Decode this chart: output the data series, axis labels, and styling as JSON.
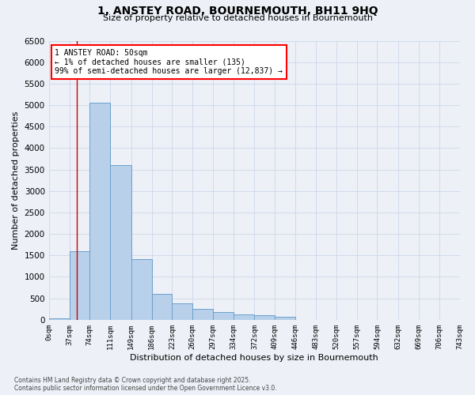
{
  "title": "1, ANSTEY ROAD, BOURNEMOUTH, BH11 9HQ",
  "subtitle": "Size of property relative to detached houses in Bournemouth",
  "xlabel": "Distribution of detached houses by size in Bournemouth",
  "ylabel": "Number of detached properties",
  "bar_color": "#b8d0ea",
  "bar_edge_color": "#6aa0cc",
  "background_color": "#edf1f7",
  "annotation_line1": "1 ANSTEY ROAD: 50sqm",
  "annotation_line2": "← 1% of detached houses are smaller (135)",
  "annotation_line3": "99% of semi-detached houses are larger (12,837) →",
  "vline_x": 50,
  "vline_color": "#cc0000",
  "bins": [
    0,
    37,
    74,
    111,
    149,
    186,
    223,
    260,
    297,
    334,
    372,
    409,
    446,
    483,
    520,
    557,
    594,
    632,
    669,
    706,
    743
  ],
  "bin_labels": [
    "0sqm",
    "37sqm",
    "74sqm",
    "111sqm",
    "149sqm",
    "186sqm",
    "223sqm",
    "260sqm",
    "297sqm",
    "334sqm",
    "372sqm",
    "409sqm",
    "446sqm",
    "483sqm",
    "520sqm",
    "557sqm",
    "594sqm",
    "632sqm",
    "669sqm",
    "706sqm",
    "743sqm"
  ],
  "bar_heights": [
    30,
    1600,
    5050,
    3600,
    1420,
    600,
    380,
    250,
    175,
    130,
    100,
    70,
    0,
    0,
    0,
    0,
    0,
    0,
    0,
    0
  ],
  "ylim": [
    0,
    6500
  ],
  "yticks": [
    0,
    500,
    1000,
    1500,
    2000,
    2500,
    3000,
    3500,
    4000,
    4500,
    5000,
    5500,
    6000,
    6500
  ],
  "footer": "Contains HM Land Registry data © Crown copyright and database right 2025.\nContains public sector information licensed under the Open Government Licence v3.0.",
  "grid_color": "#ccd6e8",
  "figsize": [
    6.0,
    5.0
  ],
  "dpi": 100
}
